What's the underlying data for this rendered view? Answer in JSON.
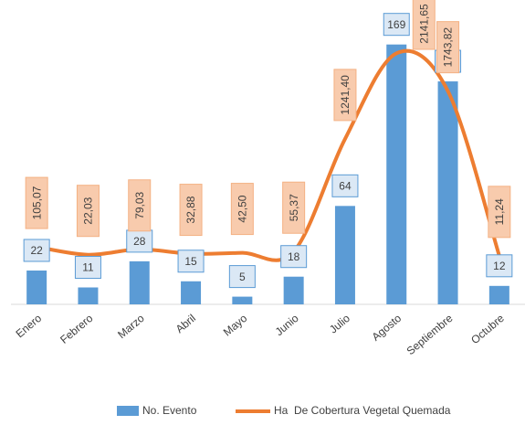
{
  "chart_data": {
    "type": "bar-line",
    "categories": [
      "Enero",
      "Febrero",
      "Marzo",
      "Abril",
      "Mayo",
      "Junio",
      "Julio",
      "Agosto",
      "Septiembre",
      "Octubre"
    ],
    "series": [
      {
        "name": "No. Evento",
        "color": "#5b9bd5",
        "type": "bar",
        "values": [
          22,
          11,
          28,
          15,
          5,
          18,
          64,
          169,
          145,
          12
        ]
      },
      {
        "name": "Ha  De Cobertura Vegetal Quemada",
        "color": "#ed7d31",
        "type": "line",
        "axis": "y2",
        "values": [
          105.07,
          22.03,
          79.03,
          32.88,
          42.5,
          55.37,
          1241.4,
          2141.65,
          1743.82,
          11.24
        ],
        "value_labels": [
          "105,07",
          "22,03",
          "79,03",
          "32,88",
          "42,50",
          "55,37",
          "1241,40",
          "2141,65",
          "1743,82",
          "11,24"
        ]
      }
    ],
    "ylim": [
      0,
      170
    ],
    "y2lim": [
      -500,
      2250
    ],
    "legend": "bottom"
  }
}
